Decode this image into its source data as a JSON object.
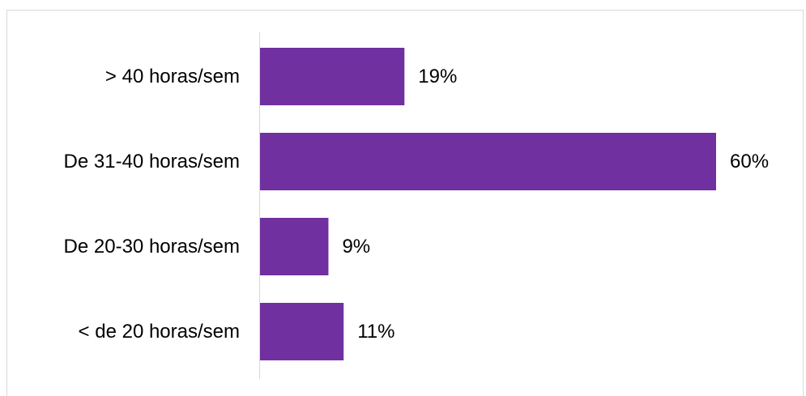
{
  "chart_data": {
    "type": "bar",
    "orientation": "horizontal",
    "categories": [
      "> 40 horas/sem",
      "De 31-40 horas/sem",
      "De 20-30 horas/sem",
      "< de 20 horas/sem"
    ],
    "values": [
      19,
      60,
      9,
      11
    ],
    "data_labels": [
      "19%",
      "60%",
      "9%",
      "11%"
    ],
    "unit": "%",
    "xlim": [
      0,
      60
    ],
    "grid": false,
    "legend": "none",
    "bar_color": "#7030a0"
  }
}
